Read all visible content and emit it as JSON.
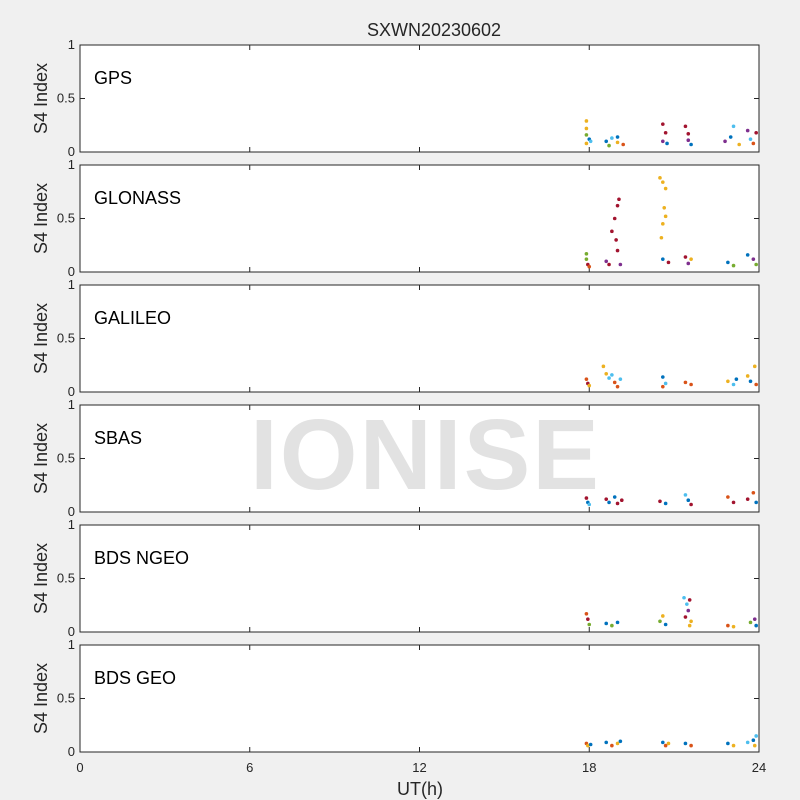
{
  "chart_data": {
    "type": "scatter",
    "title": "SXWN20230602",
    "xlabel": "UT(h)",
    "ylabel": "S4 Index",
    "xlim": [
      0,
      24
    ],
    "ylim": [
      0,
      1
    ],
    "xticks": [
      "0",
      "6",
      "12",
      "18",
      "24"
    ],
    "yticks": [
      "0",
      "0.5",
      "1"
    ],
    "grid": false,
    "watermark": "IONISE",
    "colors": [
      "#0072bd",
      "#d95319",
      "#edb120",
      "#7e2f8e",
      "#77ac30",
      "#4dbeee",
      "#a2142f"
    ],
    "panels": [
      {
        "label": "GPS",
        "points": [
          {
            "x": 17.9,
            "y": 0.29,
            "s": 2
          },
          {
            "x": 17.9,
            "y": 0.22,
            "s": 2
          },
          {
            "x": 17.9,
            "y": 0.16,
            "s": 4
          },
          {
            "x": 18.0,
            "y": 0.12,
            "s": 0
          },
          {
            "x": 17.9,
            "y": 0.08,
            "s": 2
          },
          {
            "x": 18.05,
            "y": 0.1,
            "s": 5
          },
          {
            "x": 18.6,
            "y": 0.1,
            "s": 0
          },
          {
            "x": 18.8,
            "y": 0.13,
            "s": 5
          },
          {
            "x": 19.0,
            "y": 0.09,
            "s": 2
          },
          {
            "x": 19.2,
            "y": 0.07,
            "s": 1
          },
          {
            "x": 19.0,
            "y": 0.14,
            "s": 0
          },
          {
            "x": 18.7,
            "y": 0.06,
            "s": 4
          },
          {
            "x": 20.6,
            "y": 0.26,
            "s": 6
          },
          {
            "x": 20.7,
            "y": 0.18,
            "s": 6
          },
          {
            "x": 20.6,
            "y": 0.1,
            "s": 3
          },
          {
            "x": 20.75,
            "y": 0.08,
            "s": 0
          },
          {
            "x": 21.4,
            "y": 0.24,
            "s": 6
          },
          {
            "x": 21.5,
            "y": 0.17,
            "s": 6
          },
          {
            "x": 21.5,
            "y": 0.11,
            "s": 3
          },
          {
            "x": 21.6,
            "y": 0.07,
            "s": 0
          },
          {
            "x": 22.8,
            "y": 0.1,
            "s": 3
          },
          {
            "x": 23.0,
            "y": 0.14,
            "s": 0
          },
          {
            "x": 23.1,
            "y": 0.24,
            "s": 5
          },
          {
            "x": 23.3,
            "y": 0.07,
            "s": 2
          },
          {
            "x": 23.6,
            "y": 0.2,
            "s": 3
          },
          {
            "x": 23.7,
            "y": 0.12,
            "s": 5
          },
          {
            "x": 23.8,
            "y": 0.08,
            "s": 1
          },
          {
            "x": 23.9,
            "y": 0.18,
            "s": 6
          }
        ]
      },
      {
        "label": "GLONASS",
        "points": [
          {
            "x": 17.9,
            "y": 0.17,
            "s": 4
          },
          {
            "x": 17.9,
            "y": 0.12,
            "s": 4
          },
          {
            "x": 17.95,
            "y": 0.07,
            "s": 6
          },
          {
            "x": 18.0,
            "y": 0.05,
            "s": 1
          },
          {
            "x": 18.6,
            "y": 0.1,
            "s": 3
          },
          {
            "x": 18.7,
            "y": 0.07,
            "s": 6
          },
          {
            "x": 18.8,
            "y": 0.38,
            "s": 6
          },
          {
            "x": 18.9,
            "y": 0.5,
            "s": 6
          },
          {
            "x": 19.0,
            "y": 0.62,
            "s": 6
          },
          {
            "x": 19.05,
            "y": 0.68,
            "s": 6
          },
          {
            "x": 18.95,
            "y": 0.3,
            "s": 6
          },
          {
            "x": 19.0,
            "y": 0.2,
            "s": 6
          },
          {
            "x": 19.1,
            "y": 0.07,
            "s": 3
          },
          {
            "x": 20.5,
            "y": 0.88,
            "s": 2
          },
          {
            "x": 20.6,
            "y": 0.84,
            "s": 2
          },
          {
            "x": 20.7,
            "y": 0.78,
            "s": 2
          },
          {
            "x": 20.65,
            "y": 0.6,
            "s": 2
          },
          {
            "x": 20.7,
            "y": 0.52,
            "s": 2
          },
          {
            "x": 20.6,
            "y": 0.45,
            "s": 2
          },
          {
            "x": 20.55,
            "y": 0.32,
            "s": 2
          },
          {
            "x": 20.6,
            "y": 0.12,
            "s": 0
          },
          {
            "x": 20.8,
            "y": 0.09,
            "s": 6
          },
          {
            "x": 21.4,
            "y": 0.14,
            "s": 6
          },
          {
            "x": 21.5,
            "y": 0.08,
            "s": 3
          },
          {
            "x": 21.6,
            "y": 0.12,
            "s": 2
          },
          {
            "x": 22.9,
            "y": 0.09,
            "s": 0
          },
          {
            "x": 23.1,
            "y": 0.06,
            "s": 4
          },
          {
            "x": 23.6,
            "y": 0.16,
            "s": 0
          },
          {
            "x": 23.8,
            "y": 0.12,
            "s": 3
          },
          {
            "x": 23.9,
            "y": 0.07,
            "s": 4
          }
        ]
      },
      {
        "label": "GALILEO",
        "points": [
          {
            "x": 17.9,
            "y": 0.12,
            "s": 1
          },
          {
            "x": 17.95,
            "y": 0.08,
            "s": 6
          },
          {
            "x": 18.0,
            "y": 0.06,
            "s": 2
          },
          {
            "x": 18.5,
            "y": 0.24,
            "s": 2
          },
          {
            "x": 18.6,
            "y": 0.17,
            "s": 2
          },
          {
            "x": 18.7,
            "y": 0.13,
            "s": 5
          },
          {
            "x": 18.8,
            "y": 0.16,
            "s": 5
          },
          {
            "x": 18.9,
            "y": 0.09,
            "s": 1
          },
          {
            "x": 19.0,
            "y": 0.05,
            "s": 1
          },
          {
            "x": 19.1,
            "y": 0.12,
            "s": 5
          },
          {
            "x": 20.6,
            "y": 0.14,
            "s": 0
          },
          {
            "x": 20.7,
            "y": 0.08,
            "s": 5
          },
          {
            "x": 20.6,
            "y": 0.05,
            "s": 1
          },
          {
            "x": 21.4,
            "y": 0.09,
            "s": 1
          },
          {
            "x": 21.6,
            "y": 0.07,
            "s": 1
          },
          {
            "x": 22.9,
            "y": 0.1,
            "s": 2
          },
          {
            "x": 23.1,
            "y": 0.07,
            "s": 5
          },
          {
            "x": 23.2,
            "y": 0.12,
            "s": 0
          },
          {
            "x": 23.6,
            "y": 0.15,
            "s": 2
          },
          {
            "x": 23.7,
            "y": 0.1,
            "s": 0
          },
          {
            "x": 23.85,
            "y": 0.24,
            "s": 2
          },
          {
            "x": 23.9,
            "y": 0.07,
            "s": 1
          }
        ]
      },
      {
        "label": "SBAS",
        "points": [
          {
            "x": 17.9,
            "y": 0.13,
            "s": 6
          },
          {
            "x": 17.95,
            "y": 0.09,
            "s": 0
          },
          {
            "x": 18.0,
            "y": 0.07,
            "s": 5
          },
          {
            "x": 18.6,
            "y": 0.12,
            "s": 6
          },
          {
            "x": 18.7,
            "y": 0.09,
            "s": 0
          },
          {
            "x": 18.9,
            "y": 0.14,
            "s": 0
          },
          {
            "x": 19.0,
            "y": 0.08,
            "s": 6
          },
          {
            "x": 19.15,
            "y": 0.11,
            "s": 6
          },
          {
            "x": 20.5,
            "y": 0.1,
            "s": 6
          },
          {
            "x": 20.7,
            "y": 0.08,
            "s": 0
          },
          {
            "x": 21.4,
            "y": 0.16,
            "s": 5
          },
          {
            "x": 21.5,
            "y": 0.11,
            "s": 0
          },
          {
            "x": 21.6,
            "y": 0.07,
            "s": 6
          },
          {
            "x": 22.9,
            "y": 0.14,
            "s": 1
          },
          {
            "x": 23.1,
            "y": 0.09,
            "s": 6
          },
          {
            "x": 23.6,
            "y": 0.12,
            "s": 6
          },
          {
            "x": 23.8,
            "y": 0.18,
            "s": 1
          },
          {
            "x": 23.9,
            "y": 0.09,
            "s": 0
          }
        ]
      },
      {
        "label": "BDS NGEO",
        "points": [
          {
            "x": 17.9,
            "y": 0.17,
            "s": 1
          },
          {
            "x": 17.95,
            "y": 0.12,
            "s": 6
          },
          {
            "x": 18.0,
            "y": 0.07,
            "s": 4
          },
          {
            "x": 18.6,
            "y": 0.08,
            "s": 0
          },
          {
            "x": 18.8,
            "y": 0.06,
            "s": 4
          },
          {
            "x": 19.0,
            "y": 0.09,
            "s": 0
          },
          {
            "x": 20.5,
            "y": 0.1,
            "s": 4
          },
          {
            "x": 20.6,
            "y": 0.15,
            "s": 2
          },
          {
            "x": 20.7,
            "y": 0.07,
            "s": 0
          },
          {
            "x": 21.35,
            "y": 0.32,
            "s": 5
          },
          {
            "x": 21.45,
            "y": 0.26,
            "s": 5
          },
          {
            "x": 21.55,
            "y": 0.3,
            "s": 6
          },
          {
            "x": 21.5,
            "y": 0.2,
            "s": 3
          },
          {
            "x": 21.4,
            "y": 0.14,
            "s": 6
          },
          {
            "x": 21.6,
            "y": 0.1,
            "s": 2
          },
          {
            "x": 21.55,
            "y": 0.06,
            "s": 2
          },
          {
            "x": 22.9,
            "y": 0.06,
            "s": 1
          },
          {
            "x": 23.1,
            "y": 0.05,
            "s": 2
          },
          {
            "x": 23.7,
            "y": 0.09,
            "s": 4
          },
          {
            "x": 23.85,
            "y": 0.12,
            "s": 3
          },
          {
            "x": 23.9,
            "y": 0.06,
            "s": 0
          }
        ]
      },
      {
        "label": "BDS GEO",
        "points": [
          {
            "x": 17.9,
            "y": 0.08,
            "s": 1
          },
          {
            "x": 17.95,
            "y": 0.06,
            "s": 2
          },
          {
            "x": 18.05,
            "y": 0.07,
            "s": 0
          },
          {
            "x": 18.6,
            "y": 0.09,
            "s": 0
          },
          {
            "x": 18.8,
            "y": 0.06,
            "s": 1
          },
          {
            "x": 19.0,
            "y": 0.08,
            "s": 2
          },
          {
            "x": 19.1,
            "y": 0.1,
            "s": 0
          },
          {
            "x": 20.6,
            "y": 0.09,
            "s": 0
          },
          {
            "x": 20.7,
            "y": 0.06,
            "s": 1
          },
          {
            "x": 20.8,
            "y": 0.08,
            "s": 2
          },
          {
            "x": 21.4,
            "y": 0.08,
            "s": 0
          },
          {
            "x": 21.6,
            "y": 0.06,
            "s": 1
          },
          {
            "x": 22.9,
            "y": 0.08,
            "s": 0
          },
          {
            "x": 23.1,
            "y": 0.06,
            "s": 2
          },
          {
            "x": 23.6,
            "y": 0.09,
            "s": 5
          },
          {
            "x": 23.8,
            "y": 0.11,
            "s": 0
          },
          {
            "x": 23.9,
            "y": 0.15,
            "s": 5
          },
          {
            "x": 23.85,
            "y": 0.06,
            "s": 2
          }
        ]
      }
    ]
  }
}
